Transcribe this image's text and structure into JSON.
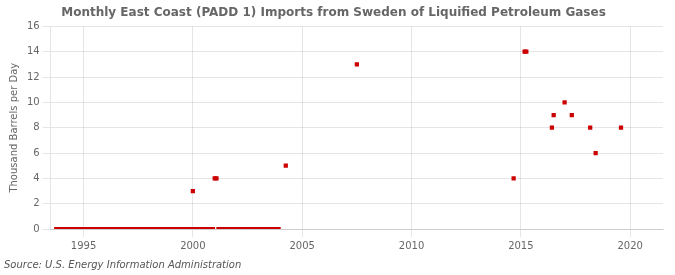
{
  "chart_data": {
    "type": "scatter",
    "title": "Monthly East Coast (PADD 1) Imports from Sweden of Liquified Petroleum Gases",
    "ylabel": "Thousand Barrels per Day",
    "source": "Source: U.S. Energy Information Administration",
    "color": "#cc0000",
    "marker": "square",
    "grid": true,
    "xlim": [
      1993.5,
      2021.5
    ],
    "ylim": [
      0,
      16
    ],
    "xticks": [
      1995,
      2000,
      2005,
      2010,
      2015,
      2020
    ],
    "yticks": [
      0,
      2,
      4,
      6,
      8,
      10,
      12,
      14,
      16
    ],
    "x": [
      1993.75,
      1993.83,
      1993.92,
      1994.0,
      1994.08,
      1994.17,
      1994.25,
      1994.33,
      1994.42,
      1994.5,
      1994.58,
      1994.67,
      1994.75,
      1994.83,
      1994.92,
      1995.0,
      1995.08,
      1995.17,
      1995.25,
      1995.33,
      1995.42,
      1995.5,
      1995.58,
      1995.67,
      1995.75,
      1995.83,
      1995.92,
      1996.0,
      1996.08,
      1996.17,
      1996.25,
      1996.33,
      1996.42,
      1996.5,
      1996.58,
      1996.67,
      1996.75,
      1996.83,
      1996.92,
      1997.0,
      1997.08,
      1997.17,
      1997.25,
      1997.33,
      1997.42,
      1997.5,
      1997.58,
      1997.67,
      1997.75,
      1997.83,
      1997.92,
      1998.0,
      1998.08,
      1998.17,
      1998.25,
      1998.33,
      1998.42,
      1998.5,
      1998.58,
      1998.67,
      1998.75,
      1998.83,
      1998.92,
      1999.0,
      1999.08,
      1999.17,
      1999.25,
      1999.33,
      1999.42,
      1999.5,
      1999.58,
      1999.67,
      1999.75,
      1999.83,
      1999.92,
      2000.0,
      2000.08,
      2000.17,
      2000.25,
      2000.33,
      2000.42,
      2000.5,
      2000.58,
      2000.67,
      2000.75,
      2000.83,
      2000.92,
      2001.0,
      2001.08,
      2001.17,
      2001.25,
      2001.33,
      2001.42,
      2001.5,
      2001.58,
      2001.67,
      2001.75,
      2001.83,
      2001.92,
      2002.0,
      2002.08,
      2002.17,
      2002.25,
      2002.33,
      2002.42,
      2002.5,
      2002.58,
      2002.67,
      2002.75,
      2002.83,
      2002.92,
      2003.0,
      2003.08,
      2003.17,
      2003.25,
      2003.33,
      2003.42,
      2003.5,
      2003.58,
      2003.67,
      2003.75,
      2003.83,
      2003.92,
      2004.25,
      2007.5,
      2014.67,
      2015.17,
      2015.25,
      2016.42,
      2016.5,
      2017.0,
      2017.33,
      2018.17,
      2018.42,
      2019.58
    ],
    "values": [
      0,
      0,
      0,
      0,
      0,
      0,
      0,
      0,
      0,
      0,
      0,
      0,
      0,
      0,
      0,
      0,
      0,
      0,
      0,
      0,
      0,
      0,
      0,
      0,
      0,
      0,
      0,
      0,
      0,
      0,
      0,
      0,
      0,
      0,
      0,
      0,
      0,
      0,
      0,
      0,
      0,
      0,
      0,
      0,
      0,
      0,
      0,
      0,
      0,
      0,
      0,
      0,
      0,
      0,
      0,
      0,
      0,
      0,
      0,
      0,
      0,
      0,
      0,
      0,
      0,
      0,
      0,
      0,
      0,
      0,
      0,
      0,
      0,
      0,
      0,
      3,
      0,
      0,
      0,
      0,
      0,
      0,
      0,
      0,
      0,
      0,
      0,
      4,
      4,
      0,
      0,
      0,
      0,
      0,
      0,
      0,
      0,
      0,
      0,
      0,
      0,
      0,
      0,
      0,
      0,
      0,
      0,
      0,
      0,
      0,
      0,
      0,
      0,
      0,
      0,
      0,
      0,
      0,
      0,
      0,
      0,
      0,
      0,
      5,
      13,
      4,
      14,
      14,
      8,
      9,
      10,
      9,
      8,
      6,
      8
    ]
  }
}
